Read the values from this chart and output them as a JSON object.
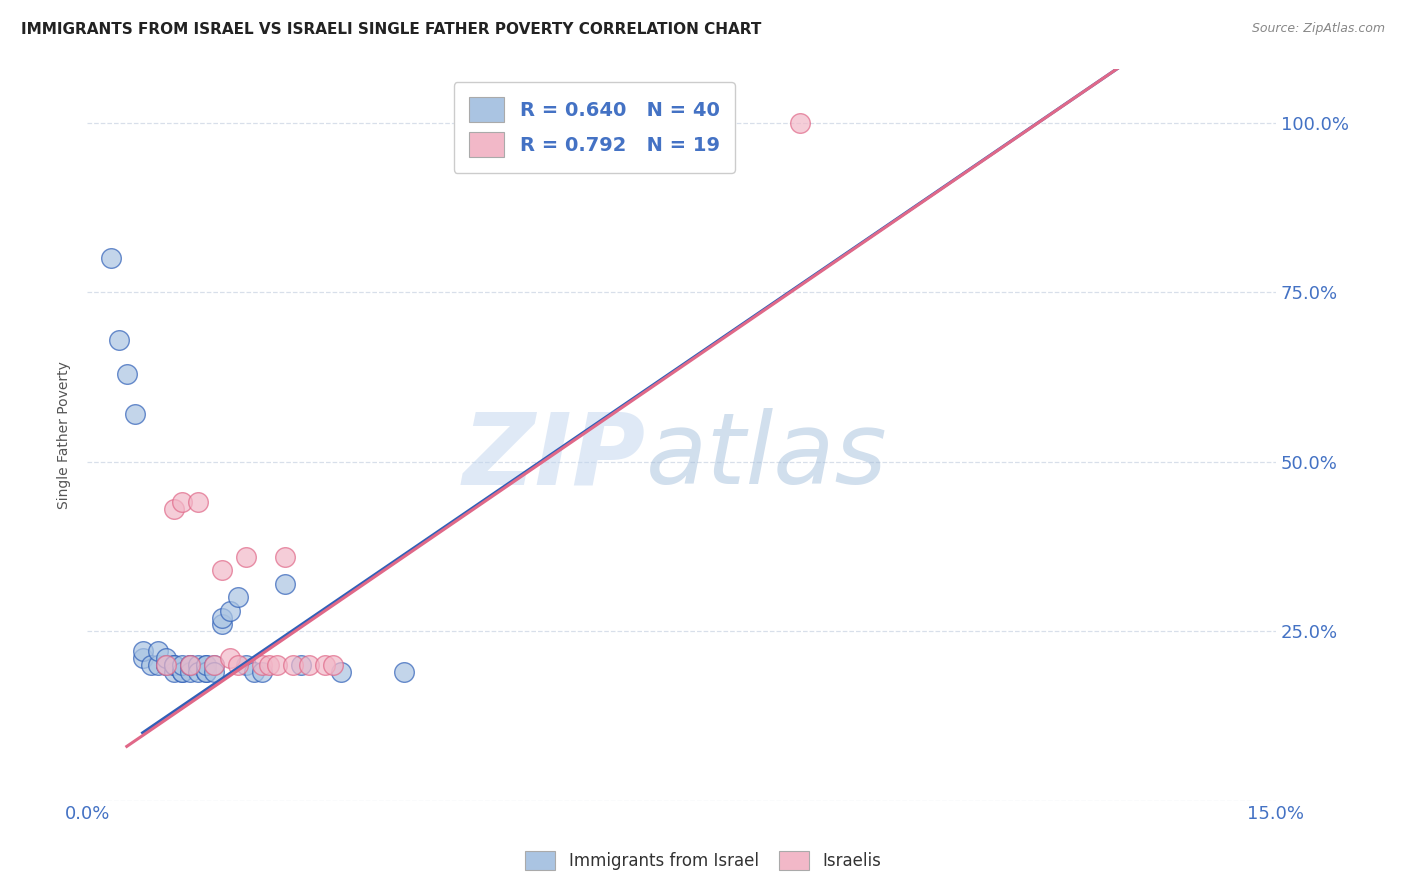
{
  "title": "IMMIGRANTS FROM ISRAEL VS ISRAELI SINGLE FATHER POVERTY CORRELATION CHART",
  "source": "Source: ZipAtlas.com",
  "legend_blue_label": "Immigrants from Israel",
  "legend_pink_label": "Israelis",
  "legend_blue_r": "R = 0.640",
  "legend_blue_n": "N = 40",
  "legend_pink_r": "R = 0.792",
  "legend_pink_n": "N = 19",
  "watermark_zip": "ZIP",
  "watermark_atlas": "atlas",
  "blue_color": "#aac4e2",
  "pink_color": "#f2b8c8",
  "blue_line_color": "#3060b8",
  "pink_line_color": "#e06888",
  "blue_scatter": [
    [
      0.003,
      0.8
    ],
    [
      0.004,
      0.68
    ],
    [
      0.005,
      0.63
    ],
    [
      0.006,
      0.57
    ],
    [
      0.007,
      0.21
    ],
    [
      0.007,
      0.22
    ],
    [
      0.008,
      0.2
    ],
    [
      0.009,
      0.2
    ],
    [
      0.009,
      0.22
    ],
    [
      0.01,
      0.2
    ],
    [
      0.01,
      0.2
    ],
    [
      0.01,
      0.21
    ],
    [
      0.011,
      0.19
    ],
    [
      0.011,
      0.2
    ],
    [
      0.011,
      0.2
    ],
    [
      0.012,
      0.19
    ],
    [
      0.012,
      0.19
    ],
    [
      0.012,
      0.2
    ],
    [
      0.013,
      0.2
    ],
    [
      0.013,
      0.19
    ],
    [
      0.013,
      0.2
    ],
    [
      0.014,
      0.2
    ],
    [
      0.014,
      0.19
    ],
    [
      0.015,
      0.2
    ],
    [
      0.015,
      0.19
    ],
    [
      0.015,
      0.19
    ],
    [
      0.015,
      0.2
    ],
    [
      0.016,
      0.2
    ],
    [
      0.016,
      0.19
    ],
    [
      0.017,
      0.26
    ],
    [
      0.017,
      0.27
    ],
    [
      0.018,
      0.28
    ],
    [
      0.019,
      0.3
    ],
    [
      0.02,
      0.2
    ],
    [
      0.021,
      0.19
    ],
    [
      0.022,
      0.19
    ],
    [
      0.025,
      0.32
    ],
    [
      0.027,
      0.2
    ],
    [
      0.032,
      0.19
    ],
    [
      0.04,
      0.19
    ]
  ],
  "pink_scatter": [
    [
      0.01,
      0.2
    ],
    [
      0.011,
      0.43
    ],
    [
      0.012,
      0.44
    ],
    [
      0.013,
      0.2
    ],
    [
      0.014,
      0.44
    ],
    [
      0.016,
      0.2
    ],
    [
      0.017,
      0.34
    ],
    [
      0.018,
      0.21
    ],
    [
      0.019,
      0.2
    ],
    [
      0.02,
      0.36
    ],
    [
      0.022,
      0.2
    ],
    [
      0.023,
      0.2
    ],
    [
      0.024,
      0.2
    ],
    [
      0.025,
      0.36
    ],
    [
      0.026,
      0.2
    ],
    [
      0.028,
      0.2
    ],
    [
      0.03,
      0.2
    ],
    [
      0.031,
      0.2
    ],
    [
      0.09,
      1.0
    ]
  ],
  "blue_line": [
    [
      0.007,
      0.1
    ],
    [
      0.13,
      1.08
    ]
  ],
  "pink_line": [
    [
      0.005,
      0.08
    ],
    [
      0.13,
      1.08
    ]
  ],
  "xlim": [
    0.0,
    0.15
  ],
  "ylim": [
    0.0,
    1.08
  ],
  "yticks": [
    0.0,
    0.25,
    0.5,
    0.75,
    1.0
  ],
  "ytick_labels": [
    "",
    "25.0%",
    "50.0%",
    "75.0%",
    "100.0%"
  ],
  "xtick_left_label": "0.0%",
  "xtick_right_label": "15.0%",
  "grid_color": "#d4dce8",
  "background_color": "#ffffff",
  "title_fontsize": 11,
  "axis_label_color": "#4472c4",
  "ylabel": "Single Father Poverty"
}
